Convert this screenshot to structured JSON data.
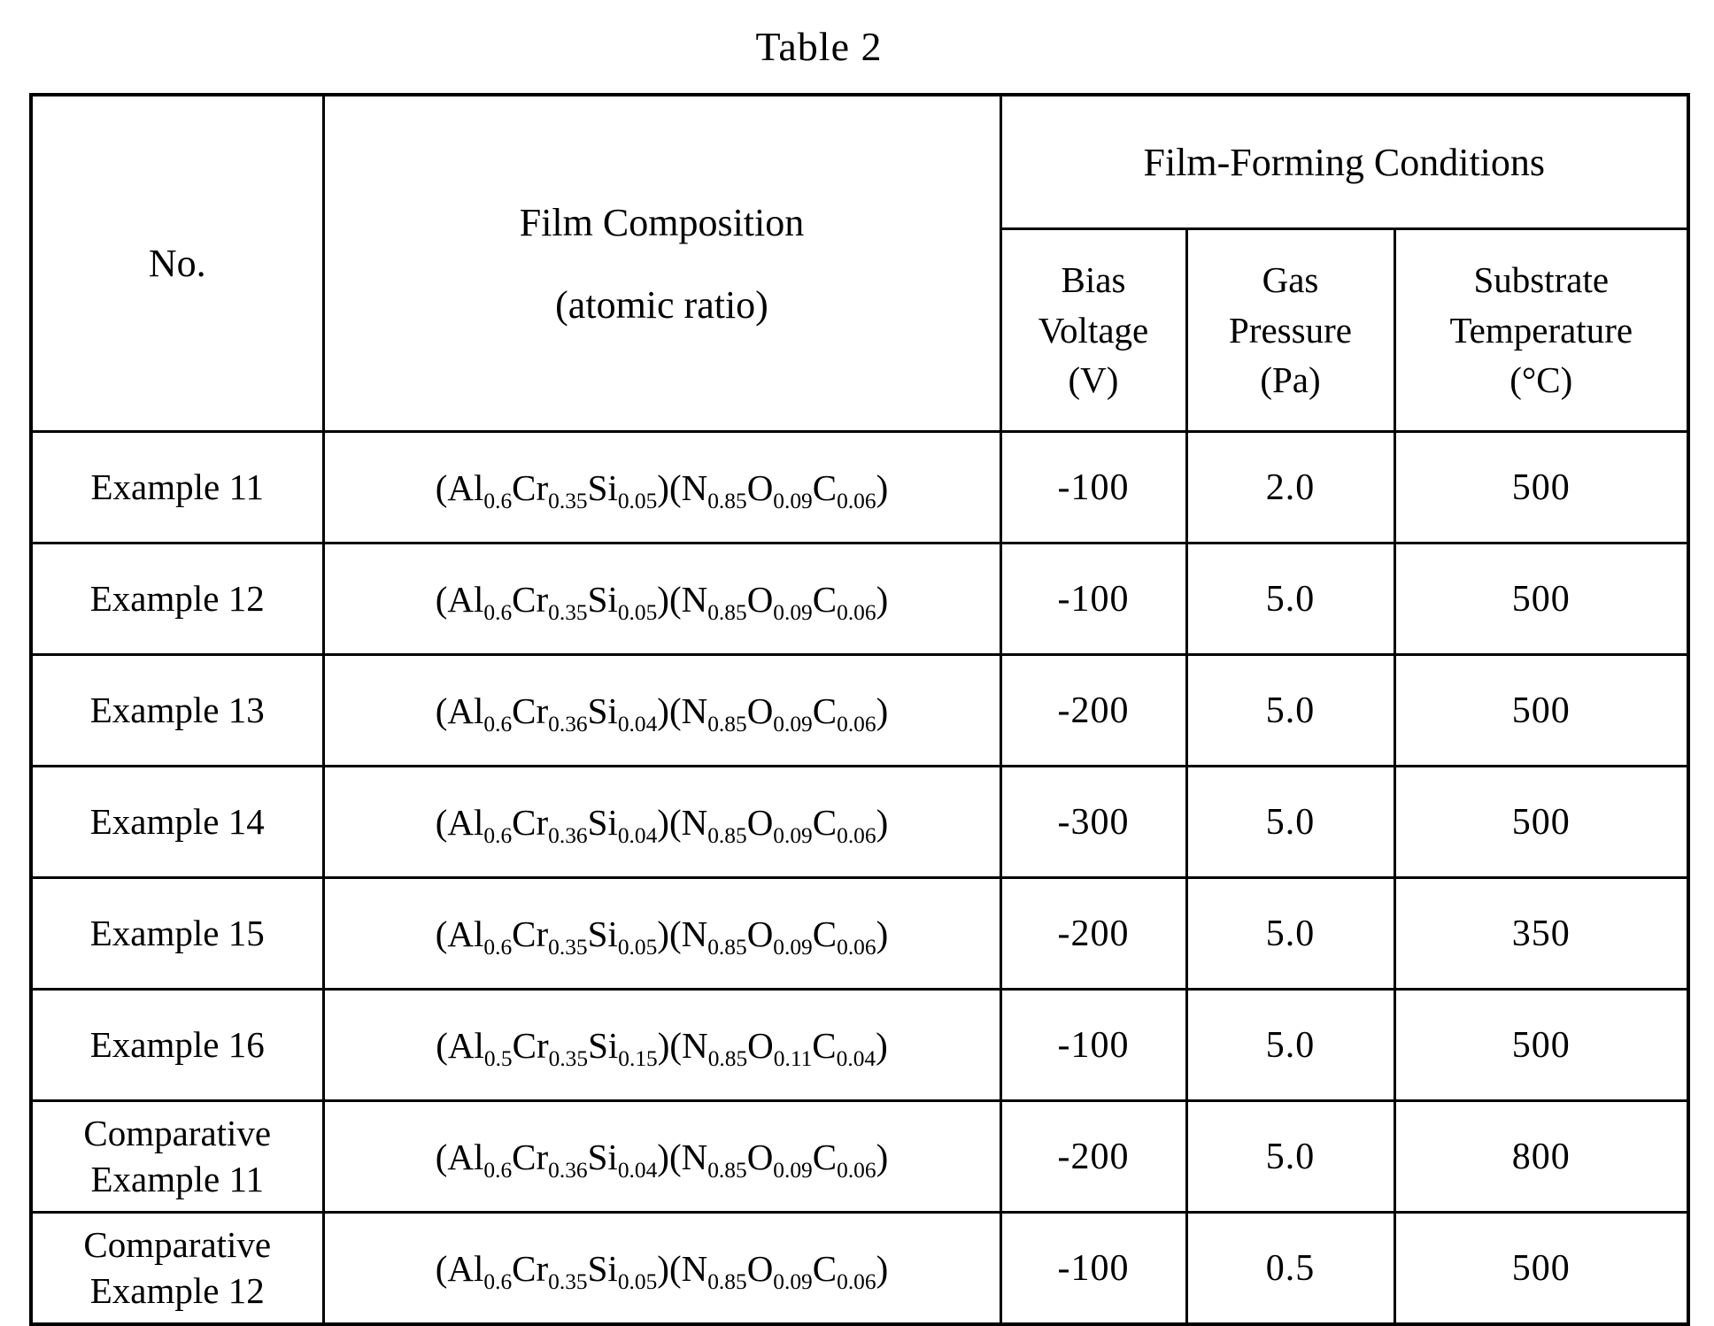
{
  "title": "Table 2",
  "colors": {
    "ink": "#000000",
    "paper": "#ffffff"
  },
  "table": {
    "header": {
      "no": "No.",
      "film_composition": [
        "Film Composition",
        "(atomic ratio)"
      ],
      "film_forming": "Film-Forming Conditions",
      "bias": [
        "Bias",
        "Voltage",
        "(V)"
      ],
      "gas": [
        "Gas",
        "Pressure",
        "(Pa)"
      ],
      "substrate": [
        "Substrate",
        "Temperature",
        "(°C)"
      ]
    },
    "rows": [
      {
        "no": "Example 11",
        "formula": "(Al_{0.6}Cr_{0.35}Si_{0.05})(N_{0.85}O_{0.09}C_{0.06})",
        "bias": "-100",
        "gas": "2.0",
        "temp": "500"
      },
      {
        "no": "Example 12",
        "formula": "(Al_{0.6}Cr_{0.35}Si_{0.05})(N_{0.85}O_{0.09}C_{0.06})",
        "bias": "-100",
        "gas": "5.0",
        "temp": "500"
      },
      {
        "no": "Example 13",
        "formula": "(Al_{0.6}Cr_{0.36}Si_{0.04})(N_{0.85}O_{0.09}C_{0.06})",
        "bias": "-200",
        "gas": "5.0",
        "temp": "500"
      },
      {
        "no": "Example 14",
        "formula": "(Al_{0.6}Cr_{0.36}Si_{0.04})(N_{0.85}O_{0.09}C_{0.06})",
        "bias": "-300",
        "gas": "5.0",
        "temp": "500"
      },
      {
        "no": "Example 15",
        "formula": "(Al_{0.6}Cr_{0.35}Si_{0.05})(N_{0.85}O_{0.09}C_{0.06})",
        "bias": "-200",
        "gas": "5.0",
        "temp": "350"
      },
      {
        "no": "Example 16",
        "formula": "(Al_{0.5}Cr_{0.35}Si_{0.15})(N_{0.85}O_{0.11}C_{0.04})",
        "bias": "-100",
        "gas": "5.0",
        "temp": "500"
      },
      {
        "no": "Comparative Example 11",
        "formula": "(Al_{0.6}Cr_{0.36}Si_{0.04})(N_{0.85}O_{0.09}C_{0.06})",
        "bias": "-200",
        "gas": "5.0",
        "temp": "800"
      },
      {
        "no": "Comparative Example 12",
        "formula": "(Al_{0.6}Cr_{0.35}Si_{0.05})(N_{0.85}O_{0.09}C_{0.06})",
        "bias": "-100",
        "gas": "0.5",
        "temp": "500"
      }
    ]
  }
}
